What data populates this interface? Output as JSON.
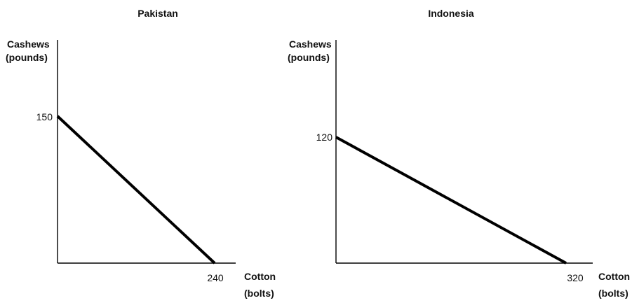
{
  "chart_data": [
    {
      "type": "line",
      "title": "Pakistan",
      "ylabel": [
        "Cashews",
        "(pounds)"
      ],
      "xlabel": [
        "Cotton",
        "(bolts)"
      ],
      "x_tick": "240",
      "y_tick": "150",
      "series": [
        {
          "x": [
            0,
            240
          ],
          "y": [
            150,
            0
          ]
        }
      ],
      "xlim": [
        0,
        300
      ],
      "ylim": [
        0,
        210
      ],
      "grid": false
    },
    {
      "type": "line",
      "title": "Indonesia",
      "ylabel": [
        "Cashews",
        "(pounds)"
      ],
      "xlabel": [
        "Cotton",
        "(bolts)"
      ],
      "x_tick": "320",
      "y_tick": "120",
      "series": [
        {
          "x": [
            0,
            320
          ],
          "y": [
            120,
            0
          ]
        }
      ],
      "xlim": [
        0,
        400
      ],
      "ylim": [
        0,
        210
      ],
      "grid": false
    }
  ]
}
